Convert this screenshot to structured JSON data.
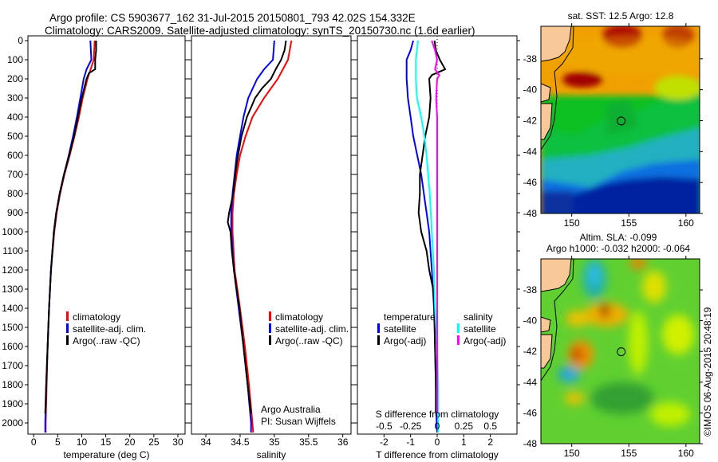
{
  "title": {
    "line1": "Argo profile: CS 5903677_162 31-Jul-2015 20150801_793 42.02S 154.332E",
    "line2": "Climatology: CARS2009. Satellite-adjusted climatology: synTS_20150730.nc (1.6d earlier)"
  },
  "colors": {
    "clim": "#ff0000",
    "sat": "#0000ff",
    "argo": "#000000",
    "sat_s": "#00ffff",
    "argo_s": "#ff00ff"
  },
  "chart_data": [
    {
      "type": "line",
      "id": "temperature",
      "xlabel": "temperature (deg C)",
      "xlim": [
        -1.2,
        31.5
      ],
      "xticks": [
        0,
        5,
        10,
        15,
        20,
        25,
        30
      ],
      "ylim": [
        2025,
        -25
      ],
      "yticks": [
        0,
        100,
        200,
        300,
        400,
        500,
        600,
        700,
        800,
        900,
        1000,
        1100,
        1200,
        1300,
        1400,
        1500,
        1600,
        1700,
        1800,
        1900,
        2000
      ],
      "legend": [
        "climatology",
        "satellite-adj. clim.",
        "Argo(..raw -QC)"
      ],
      "series": [
        {
          "name": "climatology",
          "color": "#ff0000",
          "depth": [
            0,
            100,
            200,
            300,
            400,
            500,
            600,
            700,
            800,
            900,
            1000,
            1200,
            1400,
            1600,
            1800,
            2000,
            2050
          ],
          "values": [
            12.7,
            12.5,
            11.2,
            10.2,
            9.4,
            8.5,
            7.5,
            6.4,
            5.5,
            4.8,
            4.3,
            3.6,
            3.2,
            2.9,
            2.7,
            2.5,
            2.5
          ]
        },
        {
          "name": "satellite-adj. clim.",
          "color": "#0000ff",
          "depth": [
            0,
            100,
            150,
            200,
            300,
            400,
            500,
            600,
            700,
            800,
            900,
            1000,
            1200,
            1400,
            1600,
            1800,
            2000,
            2050
          ],
          "values": [
            11.8,
            12.0,
            11.0,
            10.4,
            9.7,
            9.0,
            8.2,
            7.3,
            6.3,
            5.4,
            4.7,
            4.2,
            3.6,
            3.2,
            2.9,
            2.6,
            2.4,
            2.4
          ]
        },
        {
          "name": "Argo(..raw -QC)",
          "color": "#000000",
          "depth": [
            0,
            50,
            100,
            150,
            170,
            200,
            250,
            300,
            400,
            500,
            600,
            700,
            800,
            900,
            1000,
            1200,
            1400,
            1600,
            1800,
            1950
          ],
          "values": [
            13.0,
            13.0,
            12.8,
            12.8,
            11.5,
            11.0,
            10.5,
            10.0,
            9.2,
            8.4,
            7.4,
            6.3,
            5.4,
            4.7,
            4.2,
            3.6,
            3.2,
            2.9,
            2.6,
            2.4
          ]
        }
      ]
    },
    {
      "type": "line",
      "id": "salinity",
      "xlabel": "salinity",
      "xlim": [
        33.79,
        36.12
      ],
      "xticks": [
        34,
        34.5,
        35,
        35.5,
        36
      ],
      "ylim": [
        2025,
        -25
      ],
      "legend": [
        "climatology",
        "satellite-adj. clim.",
        "Argo(..raw -QC)"
      ],
      "annotation": [
        "Argo Australia",
        "PI: Susan Wijffels"
      ],
      "series": [
        {
          "name": "climatology",
          "color": "#ff0000",
          "depth": [
            0,
            100,
            200,
            300,
            400,
            500,
            600,
            700,
            800,
            900,
            1000,
            1200,
            1400,
            1600,
            1800,
            2000,
            2050
          ],
          "values": [
            35.25,
            35.2,
            35.05,
            34.85,
            34.68,
            34.58,
            34.5,
            34.45,
            34.41,
            34.39,
            34.39,
            34.42,
            34.5,
            34.57,
            34.63,
            34.68,
            34.69
          ]
        },
        {
          "name": "satellite-adj. clim.",
          "color": "#0000ff",
          "depth": [
            0,
            100,
            150,
            200,
            300,
            400,
            500,
            600,
            700,
            800,
            900,
            1000,
            1200,
            1400,
            1600,
            1800,
            2000,
            2050
          ],
          "values": [
            35.0,
            34.98,
            34.85,
            34.75,
            34.62,
            34.55,
            34.5,
            34.45,
            34.42,
            34.39,
            34.37,
            34.37,
            34.41,
            34.48,
            34.55,
            34.61,
            34.66,
            34.66
          ]
        },
        {
          "name": "Argo(..raw -QC)",
          "color": "#000000",
          "depth": [
            0,
            50,
            100,
            150,
            200,
            250,
            300,
            400,
            500,
            600,
            700,
            800,
            850,
            900,
            950,
            1000,
            1100,
            1200,
            1400,
            1600,
            1800,
            1950
          ],
          "values": [
            35.17,
            35.15,
            35.1,
            35.02,
            34.95,
            34.82,
            34.72,
            34.6,
            34.52,
            34.47,
            34.43,
            34.4,
            34.37,
            34.34,
            34.32,
            34.36,
            34.38,
            34.41,
            34.49,
            34.55,
            34.61,
            34.66
          ]
        }
      ]
    },
    {
      "type": "line",
      "id": "difference",
      "xlabel": "T difference from climatology",
      "xlim": [
        -3.0,
        3.0
      ],
      "xticks": [
        -2,
        -1,
        0,
        1,
        2
      ],
      "x2label": "S difference from climatology",
      "x2ticks": [
        -0.5,
        -0.25,
        0,
        0.25,
        0.5
      ],
      "x2tick_labels": [
        "-0.5",
        "-0.25",
        "0",
        "0.25",
        "0.5"
      ],
      "ylim": [
        2025,
        -25
      ],
      "legend_temperature": {
        "title": "temperature",
        "items": [
          "satellite",
          "Argo(-adj)"
        ]
      },
      "legend_salinity": {
        "title": "salinity",
        "items": [
          "satellite",
          "Argo(-adj)"
        ]
      },
      "series": [
        {
          "name": "T satellite",
          "color": "#0000ff",
          "axis": "T",
          "depth": [
            0,
            50,
            100,
            200,
            300,
            400,
            500,
            600,
            700,
            800,
            900,
            1000,
            1200,
            1400,
            1600,
            1800,
            2000,
            2050
          ],
          "values": [
            -0.9,
            -1.0,
            -1.15,
            -1.15,
            -1.1,
            -1.0,
            -0.9,
            -0.75,
            -0.6,
            -0.5,
            -0.4,
            -0.3,
            -0.2,
            -0.12,
            -0.08,
            -0.05,
            -0.02,
            0
          ]
        },
        {
          "name": "T Argo(-adj)",
          "color": "#000000",
          "axis": "T",
          "depth": [
            0,
            50,
            100,
            150,
            180,
            200,
            300,
            400,
            500,
            600,
            700,
            800,
            900,
            1000,
            1100,
            1200,
            1300,
            1400,
            1600,
            1800,
            1950
          ],
          "values": [
            -0.1,
            -0.05,
            0.1,
            0.3,
            -0.2,
            -0.3,
            -0.25,
            -0.3,
            -0.45,
            -0.55,
            -0.65,
            -0.65,
            -0.7,
            -0.6,
            -0.4,
            -0.3,
            -0.15,
            -0.1,
            -0.08,
            -0.05,
            -0.05
          ]
        },
        {
          "name": "S satellite",
          "color": "#00ffff",
          "axis": "S",
          "depth": [
            0,
            100,
            200,
            300,
            400,
            500,
            600,
            800,
            1000,
            1200,
            1400,
            1600,
            1800,
            2000,
            2050
          ],
          "values": [
            -0.18,
            -0.2,
            -0.2,
            -0.19,
            -0.15,
            -0.12,
            -0.1,
            -0.07,
            -0.05,
            -0.03,
            -0.02,
            0.0,
            0.01,
            0.01,
            0.01
          ]
        },
        {
          "name": "S Argo(-adj)",
          "color": "#ff00ff",
          "axis": "S",
          "depth": [
            0,
            50,
            100,
            150,
            180,
            200,
            300,
            400,
            500,
            600,
            800,
            1000,
            1200,
            1400,
            1600,
            1800,
            1950
          ],
          "values": [
            -0.05,
            -0.02,
            0.0,
            -0.02,
            0.02,
            0.0,
            -0.01,
            0.0,
            0.0,
            0.0,
            0.0,
            0.0,
            0.0,
            0.0,
            0.0,
            0.0,
            0.0
          ]
        }
      ]
    },
    {
      "type": "heatmap",
      "id": "sst-map",
      "title": "sat. SST: 12.5 Argo: 12.8",
      "xticks": [
        150,
        155,
        160
      ],
      "yticks": [
        -38,
        -40,
        -42,
        -44,
        -46,
        -48
      ],
      "xlim": [
        147.3,
        161.2
      ],
      "ylim": [
        -48,
        -35.9
      ],
      "marker": {
        "lon": 154.332,
        "lat": -42.02
      }
    },
    {
      "type": "heatmap",
      "id": "sla-map",
      "title": "Altim. SLA: -0.099",
      "subtitle": "Argo h1000: -0.032 h2000: -0.064",
      "xticks": [
        150,
        155,
        160
      ],
      "yticks": [
        -38,
        -40,
        -42,
        -44,
        -46,
        -48
      ],
      "xlim": [
        147.3,
        161.2
      ],
      "ylim": [
        -48,
        -35.98
      ],
      "marker": {
        "lon": 154.332,
        "lat": -42.02
      }
    }
  ],
  "credit": "©IMOS 06-Aug-2015 20:48:19"
}
